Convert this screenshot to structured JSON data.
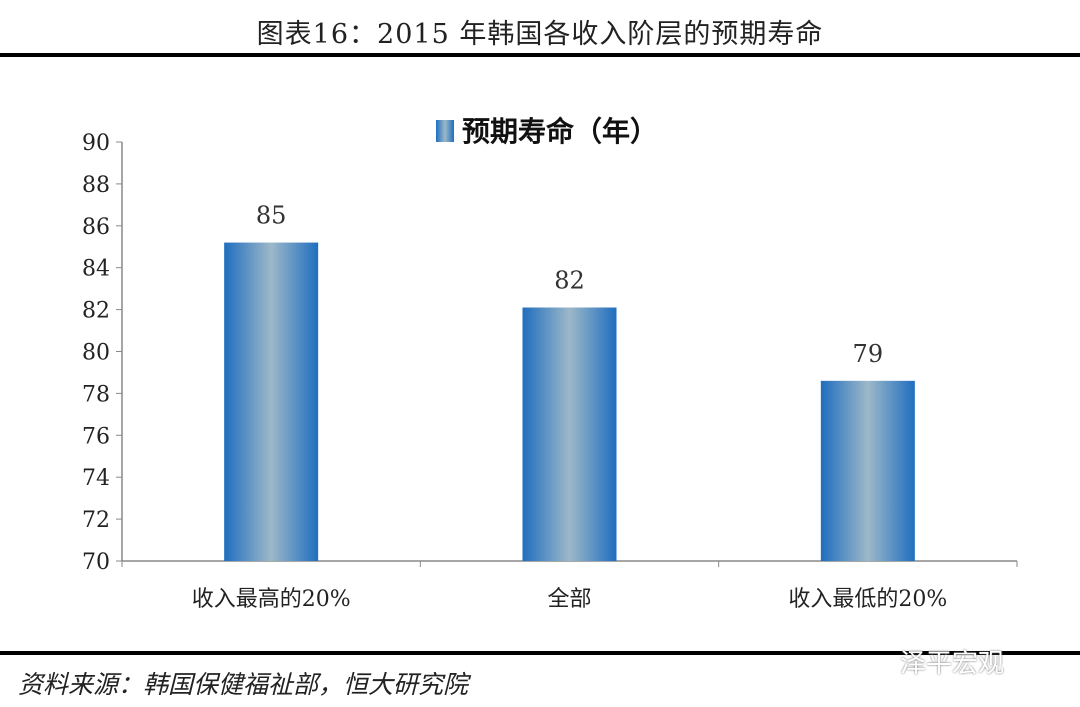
{
  "title": "图表16：2015 年韩国各收入阶层的预期寿命",
  "source": "资料来源：韩国保健福祉部，恒大研究院",
  "watermark": "泽平宏观",
  "chart_data": {
    "type": "bar",
    "categories": [
      "收入最高的20%",
      "全部",
      "收入最低的20%"
    ],
    "series": [
      {
        "name": "预期寿命（年）",
        "values": [
          85.2,
          82.1,
          78.6
        ],
        "data_labels": [
          "85",
          "82",
          "79"
        ]
      }
    ],
    "ylim": [
      70,
      90
    ],
    "yticks": [
      "70",
      "72",
      "74",
      "76",
      "78",
      "80",
      "82",
      "84",
      "86",
      "88",
      "90"
    ],
    "grid": false,
    "legend": "top",
    "bar_color": "#1f6ebf",
    "bar_highlight": "#9db8c8"
  }
}
